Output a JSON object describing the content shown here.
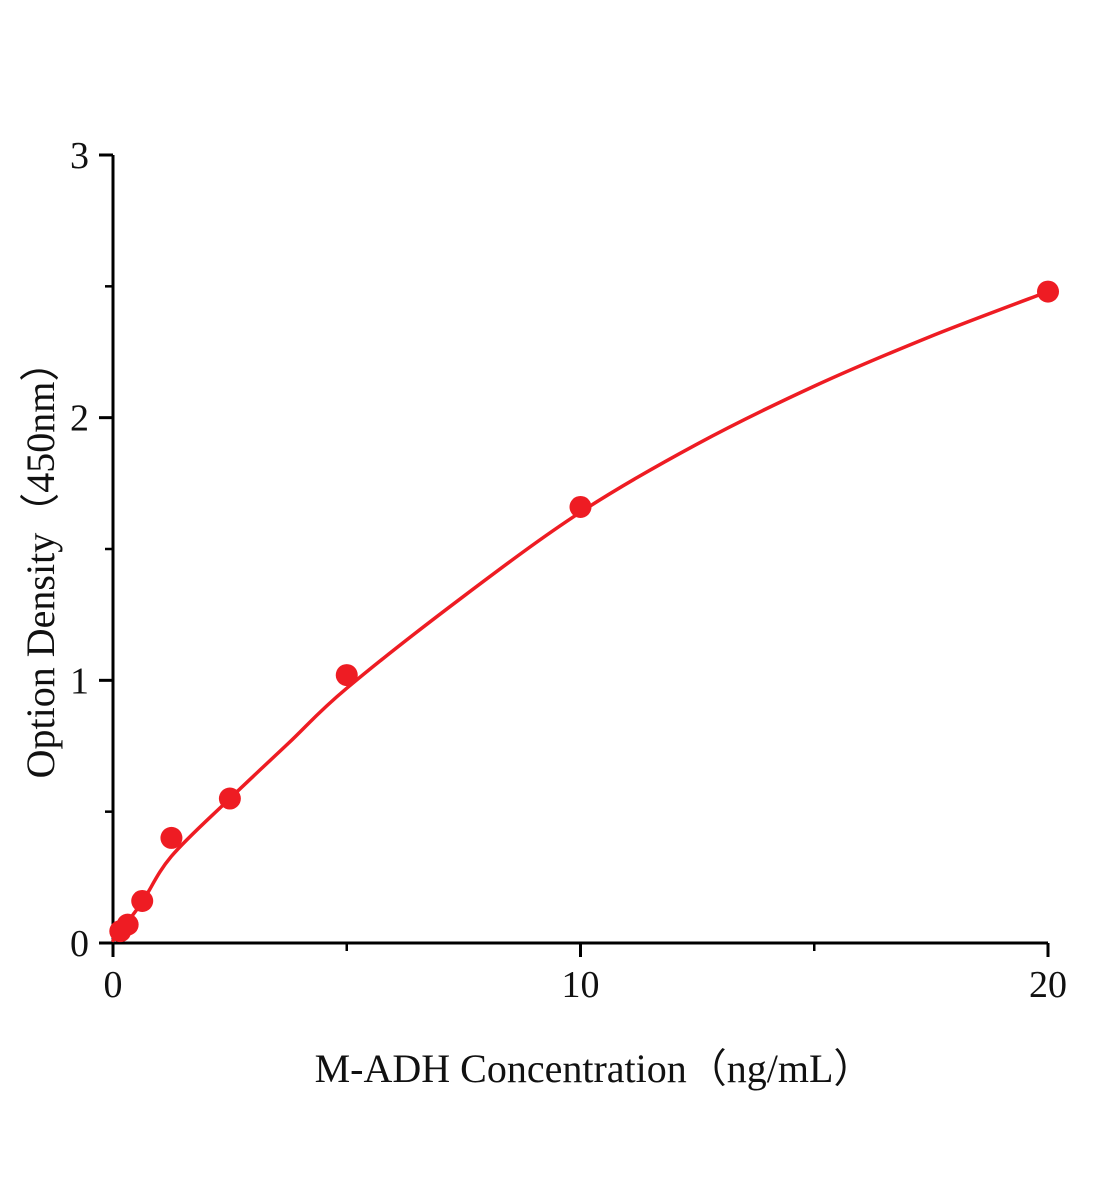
{
  "chart": {
    "x_axis_title": "M-ADH Concentration（ng/mL）",
    "y_axis_title": "Option Density（450nm）"
  },
  "chart_data": {
    "type": "scatter",
    "title": "",
    "xlabel": "M-ADH Concentration（ng/mL）",
    "ylabel": "Option Density（450nm）",
    "xlim": [
      0,
      20
    ],
    "ylim": [
      0,
      3
    ],
    "x_major_ticks": [
      0,
      10,
      20
    ],
    "x_minor_ticks": [
      5,
      15
    ],
    "y_major_ticks": [
      0,
      1,
      2,
      3
    ],
    "y_minor_ticks": [
      0.5,
      1.5,
      2.5
    ],
    "grid": false,
    "legend": "none",
    "marker_radius": 11,
    "points": [
      [
        0.156,
        0.045
      ],
      [
        0.313,
        0.07
      ],
      [
        0.625,
        0.16
      ],
      [
        1.25,
        0.4
      ],
      [
        2.5,
        0.55
      ],
      [
        5,
        1.02
      ],
      [
        10,
        1.66
      ],
      [
        20,
        2.48
      ]
    ],
    "curve": [
      [
        0,
        0.01
      ],
      [
        0.6,
        0.15
      ],
      [
        1.25,
        0.33
      ],
      [
        2.5,
        0.55
      ],
      [
        3.75,
        0.76
      ],
      [
        5,
        0.97
      ],
      [
        7.5,
        1.32
      ],
      [
        10,
        1.64
      ],
      [
        12.5,
        1.9
      ],
      [
        15,
        2.12
      ],
      [
        17.5,
        2.31
      ],
      [
        20,
        2.48
      ]
    ],
    "colors": {
      "curve": "#ee1c23",
      "marker": "#ee1c23",
      "axis": "#000000",
      "text": "#111111"
    }
  }
}
